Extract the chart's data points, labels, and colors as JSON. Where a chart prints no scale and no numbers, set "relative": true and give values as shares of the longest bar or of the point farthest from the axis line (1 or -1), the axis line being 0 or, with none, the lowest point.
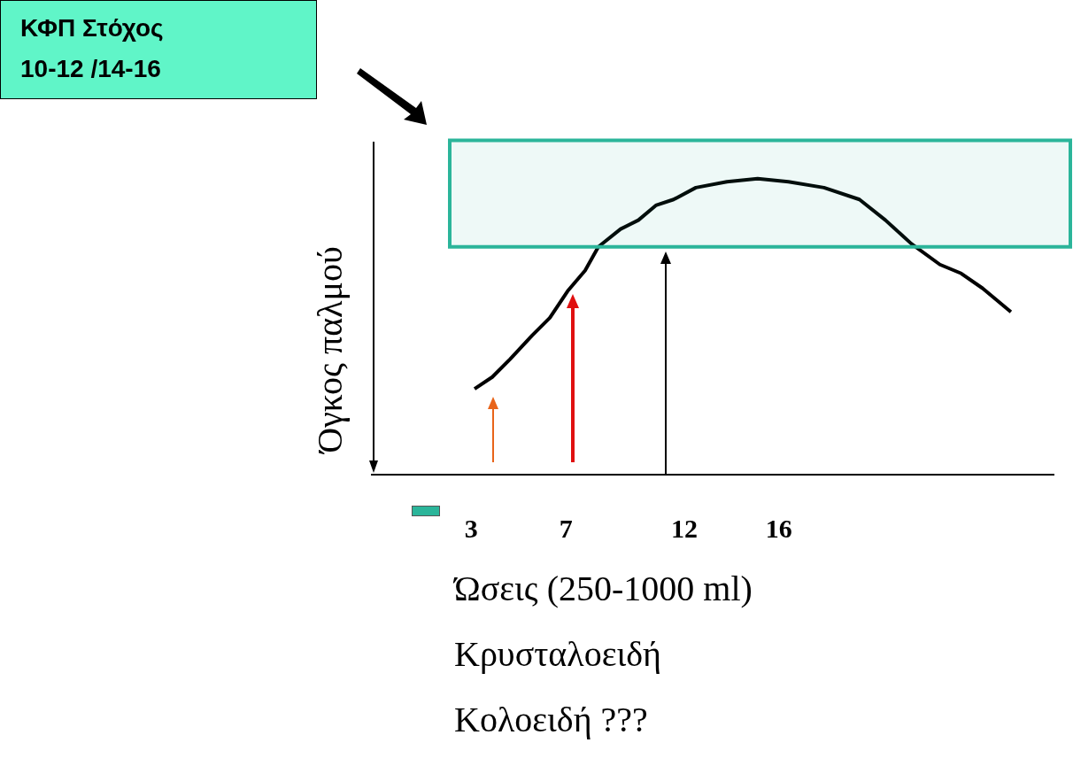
{
  "chart_data": {
    "type": "line",
    "relative": true,
    "xlabel": "Ώσεις (250-1000 ml)",
    "ylabel": "Όγκος παλμού",
    "annotations": [
      "ΚΦΠ Στόχος\n10-12 /14-16",
      "Κρυσταλοειδή",
      "Κολοειδή ???"
    ],
    "x": [
      3.14,
      3.89,
      4.64,
      5.57,
      6.32,
      7.07,
      7.81,
      8.37,
      9.31,
      10.06,
      10.8,
      11.55,
      12.49,
      13.8,
      15.1,
      16.4,
      17.9,
      19.4,
      20.5,
      21.6,
      22.8,
      23.7,
      24.6,
      25.8
    ],
    "series": [
      {
        "color": "#000000",
        "values": [
          0.29,
          0.33,
          0.39,
          0.47,
          0.53,
          0.62,
          0.69,
          0.77,
          0.83,
          0.86,
          0.91,
          0.93,
          0.97,
          0.99,
          1,
          0.99,
          0.97,
          0.93,
          0.86,
          0.78,
          0.71,
          0.68,
          0.63,
          0.55
        ]
      }
    ],
    "xlim": [
      -1.2,
      27.6
    ],
    "xticks": [
      3,
      7,
      12,
      16
    ],
    "bands": [
      {
        "axis": "y",
        "from": 0.77,
        "to": 1.13,
        "color": "#2bb59a"
      }
    ],
    "marker": "none",
    "line_style": "solid",
    "legend": false
  }
}
